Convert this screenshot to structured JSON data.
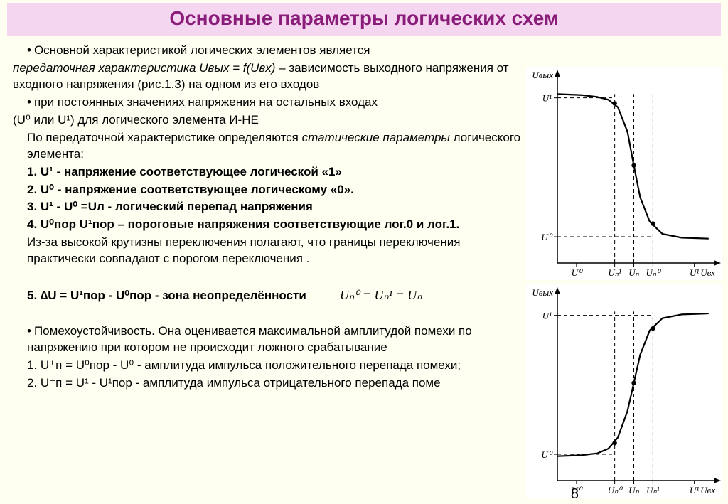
{
  "title": "Основные параметры логических схем",
  "page_number": "8",
  "text": {
    "p1a": "Основной характеристикой логических элементов является",
    "p1b_i": "передаточная характеристика Uвых = f(Uвх)",
    "p1c": " – зависимость выходного напряжения от входного напряжения (рис.1.3) на одном из его входов",
    "p2": "при постоянных значениях напряжения на  остальных входах",
    "p3": "(U⁰ или U¹) для логического элемента И-НЕ",
    "p4a": "По передаточной характеристике  определяются ",
    "p4b_i": "статические параметры",
    "p4c": " логического элемента:",
    "li1": "1. U¹  - напряжение соответствующее логической «1»",
    "li2": "2. U⁰  - напряжение соответствующее логическому «0».",
    "li3": "3. U¹ - U⁰ =Uл - логический перепад напряжения",
    "li4": "4. U⁰пор  U¹пор – пороговые напряжения соответствующие лог.0 и лог.1.",
    "p5": "Из-за высокой крутизны переключения полагают, что границы переключения практически совпадают с порогом переключения .",
    "li5": "5. ∆U = U¹пор - U⁰пор  - зона неопределённости",
    "formula": "Uₙ⁰ = Uₙ¹ = Uₙ",
    "p6": "Помехоустойчивость. Она оценивается максимальной амплитудой помехи по напряжению при котором не происходит ложного срабатывание",
    "p7": "1. U⁺п = U⁰пор - U⁰ - амплитуда импульса положительного перепада помехи;",
    "p8": "2. U⁻п = U¹ - U¹пор - амплитуда импульса отрицательного перепада поме"
  },
  "chart_style": {
    "background": "#ffffff",
    "axis_color": "#000000",
    "axis_width": 1.5,
    "curve_color": "#000000",
    "curve_width": 2.2,
    "dash_color": "#000000",
    "dash_pattern": "5,4",
    "dash_width": 1,
    "marker_radius": 3.2,
    "marker_fill": "#000000",
    "label_font": "italic 14px 'Times New Roman', serif",
    "tick_font": "italic 13px 'Times New Roman', serif"
  },
  "chart1": {
    "type": "line",
    "y_axis_label": "Uвых",
    "x_axis_label": "Uвх",
    "y_levels": {
      "U1": 0.88,
      "U0": 0.14
    },
    "x_ticks": [
      {
        "label": "U⁰",
        "x": 0.12
      },
      {
        "label": "Uₙ¹",
        "x": 0.36
      },
      {
        "label": "Uₙ",
        "x": 0.48
      },
      {
        "label": "Uₙ⁰",
        "x": 0.6
      },
      {
        "label": "U¹",
        "x": 0.86
      }
    ],
    "curve_points": [
      [
        0.0,
        0.9
      ],
      [
        0.15,
        0.895
      ],
      [
        0.25,
        0.885
      ],
      [
        0.32,
        0.87
      ],
      [
        0.38,
        0.83
      ],
      [
        0.44,
        0.7
      ],
      [
        0.48,
        0.52
      ],
      [
        0.52,
        0.35
      ],
      [
        0.58,
        0.22
      ],
      [
        0.66,
        0.155
      ],
      [
        0.78,
        0.135
      ],
      [
        0.95,
        0.13
      ]
    ],
    "markers": [
      {
        "x": 0.36,
        "y": 0.85
      },
      {
        "x": 0.48,
        "y": 0.52
      },
      {
        "x": 0.6,
        "y": 0.21
      }
    ],
    "dash_verticals": [
      0.36,
      0.48,
      0.6
    ],
    "dash_h_at_U1_to_x": 0.36,
    "dash_h_at_U0_to_x": 0.6
  },
  "chart2": {
    "type": "line",
    "y_axis_label": "Uвых",
    "x_axis_label": "Uвх",
    "y_levels": {
      "U1": 0.88,
      "U0": 0.14
    },
    "x_ticks": [
      {
        "label": "U⁰",
        "x": 0.12
      },
      {
        "label": "Uₙ⁰",
        "x": 0.36
      },
      {
        "label": "Uₙ",
        "x": 0.48
      },
      {
        "label": "Uₙ¹",
        "x": 0.6
      },
      {
        "label": "U¹",
        "x": 0.86
      }
    ],
    "curve_points": [
      [
        0.0,
        0.13
      ],
      [
        0.15,
        0.135
      ],
      [
        0.25,
        0.145
      ],
      [
        0.32,
        0.17
      ],
      [
        0.38,
        0.23
      ],
      [
        0.44,
        0.37
      ],
      [
        0.48,
        0.52
      ],
      [
        0.52,
        0.67
      ],
      [
        0.58,
        0.8
      ],
      [
        0.66,
        0.865
      ],
      [
        0.78,
        0.885
      ],
      [
        0.95,
        0.89
      ]
    ],
    "markers": [
      {
        "x": 0.36,
        "y": 0.2
      },
      {
        "x": 0.48,
        "y": 0.52
      },
      {
        "x": 0.6,
        "y": 0.81
      }
    ],
    "dash_verticals": [
      0.36,
      0.48,
      0.6
    ],
    "dash_h_at_U1_to_x": 0.6,
    "dash_h_at_U0_to_x": 0.36
  }
}
